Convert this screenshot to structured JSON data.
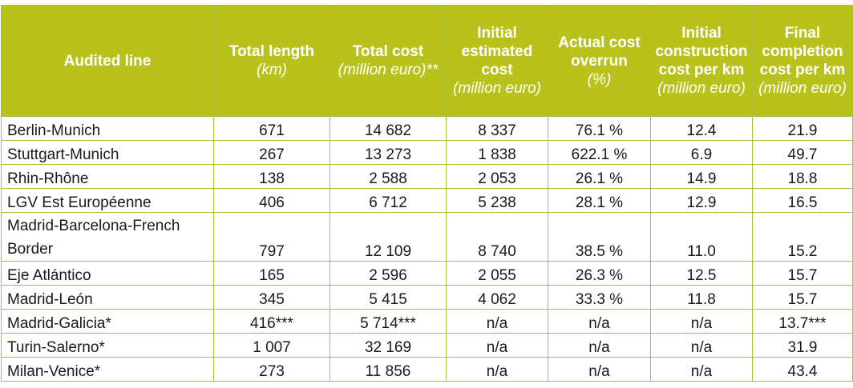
{
  "table": {
    "headers": [
      {
        "title": "Audited line",
        "unit": ""
      },
      {
        "title": "Total length",
        "unit": "(km)"
      },
      {
        "title": "Total cost",
        "unit": "(million euro)**"
      },
      {
        "title": "Initial estimated cost",
        "unit": "(million euro)"
      },
      {
        "title": "Actual cost overrun",
        "unit": "(%)"
      },
      {
        "title": "Initial construction cost per km",
        "unit": "(million euro)"
      },
      {
        "title": "Final completion cost per km",
        "unit": "(million euro)"
      }
    ],
    "rows": [
      [
        "Berlin-Munich",
        "671",
        "14 682",
        "8 337",
        "76.1 %",
        "12.4",
        "21.9"
      ],
      [
        "Stuttgart-Munich",
        "267",
        "13 273",
        "1 838",
        "622.1 %",
        "6.9",
        "49.7"
      ],
      [
        "Rhin-Rhône",
        "138",
        "2 588",
        "2 053",
        "26.1 %",
        "14.9",
        "18.8"
      ],
      [
        "LGV Est Européenne",
        "406",
        "6 712",
        "5 238",
        "28.1 %",
        "12.9",
        "16.5"
      ],
      [
        "Madrid-Barcelona-French Border",
        "797",
        "12 109",
        "8 740",
        "38.5 %",
        "11.0",
        "15.2"
      ],
      [
        "Eje Atlántico",
        "165",
        "2 596",
        "2 055",
        "26.3 %",
        "12.5",
        "15.7"
      ],
      [
        "Madrid-León",
        "345",
        "5 415",
        "4 062",
        "33.3 %",
        "11.8",
        "15.7"
      ],
      [
        "Madrid-Galicia*",
        "416***",
        "5 714***",
        "n/a",
        "n/a",
        "n/a",
        "13.7***"
      ],
      [
        "Turin-Salerno*",
        "1 007",
        "32 169",
        "n/a",
        "n/a",
        "n/a",
        "31.9"
      ],
      [
        "Milan-Venice*",
        "273",
        "11 856",
        "n/a",
        "n/a",
        "n/a",
        "43.4"
      ]
    ]
  },
  "colors": {
    "header_bg": "#b8c21a",
    "header_text": "#ffffff",
    "border": "#a8bf3c"
  }
}
